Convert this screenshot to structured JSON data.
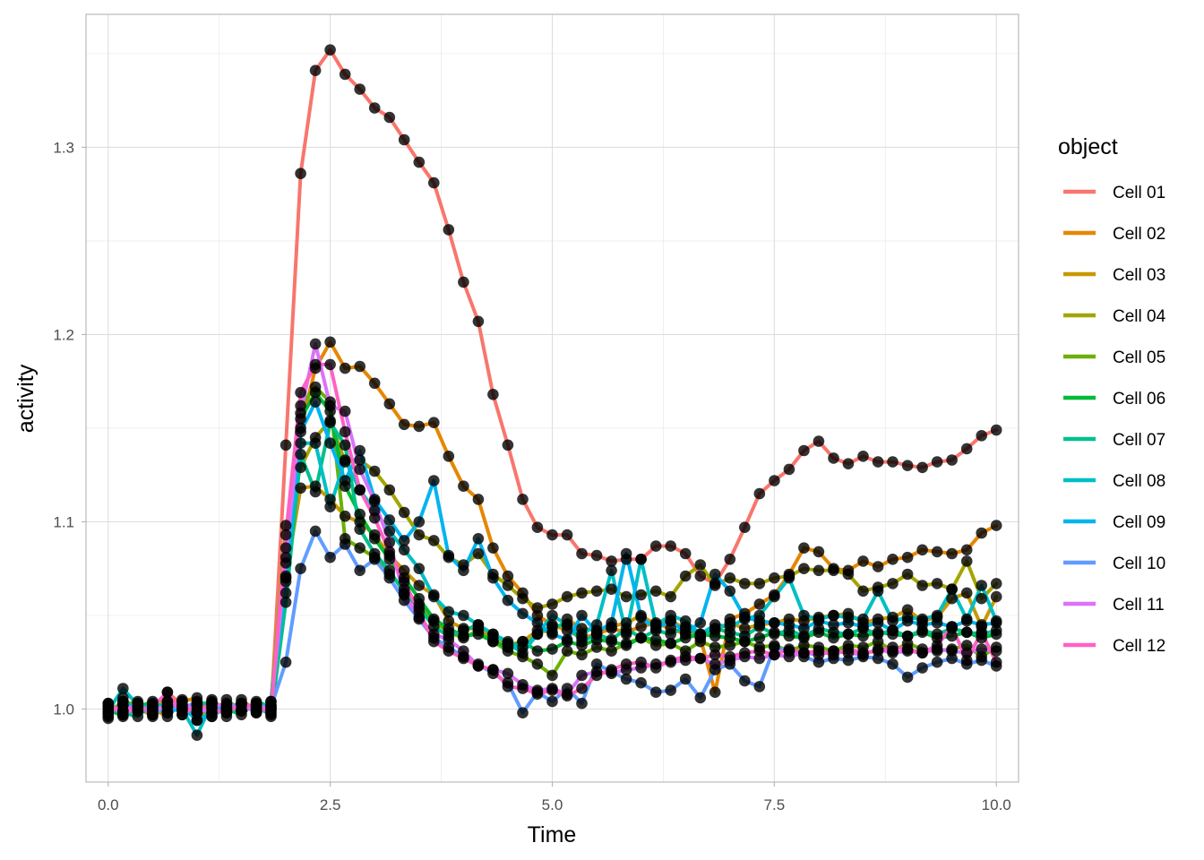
{
  "chart_data": {
    "type": "line",
    "xlabel": "Time",
    "ylabel": "activity",
    "xlim": [
      -0.25,
      10.25
    ],
    "ylim": [
      0.961,
      1.371
    ],
    "xticks": [
      0.0,
      2.5,
      5.0,
      7.5,
      10.0
    ],
    "xtick_labels": [
      "0.0",
      "2.5",
      "5.0",
      "7.5",
      "10.0"
    ],
    "yticks": [
      1.0,
      1.1,
      1.2,
      1.3
    ],
    "ytick_labels": [
      "1.0",
      "1.1",
      "1.2",
      "1.3"
    ],
    "grid": true,
    "legend": {
      "title": "object",
      "position": "right"
    },
    "x": [
      0.0,
      0.167,
      0.333,
      0.5,
      0.667,
      0.833,
      1.0,
      1.167,
      1.333,
      1.5,
      1.667,
      1.833,
      2.0,
      2.167,
      2.333,
      2.5,
      2.667,
      2.833,
      3.0,
      3.167,
      3.333,
      3.5,
      3.667,
      3.833,
      4.0,
      4.167,
      4.333,
      4.5,
      4.667,
      4.833,
      5.0,
      5.167,
      5.333,
      5.5,
      5.667,
      5.833,
      6.0,
      6.167,
      6.333,
      6.5,
      6.667,
      6.833,
      7.0,
      7.167,
      7.333,
      7.5,
      7.667,
      7.833,
      8.0,
      8.167,
      8.333,
      8.5,
      8.667,
      8.833,
      9.0,
      9.167,
      9.333,
      9.5,
      9.667,
      9.833,
      10.0
    ],
    "series": [
      {
        "name": "Cell 01",
        "color": "#F8766D",
        "values": [
          0.998,
          1.004,
          1.001,
          0.996,
          1.009,
          1.002,
          0.998,
          1.005,
          0.999,
          1.003,
          1.001,
          0.997,
          1.141,
          1.286,
          1.341,
          1.352,
          1.339,
          1.331,
          1.321,
          1.316,
          1.304,
          1.292,
          1.281,
          1.256,
          1.228,
          1.207,
          1.168,
          1.141,
          1.112,
          1.097,
          1.093,
          1.093,
          1.083,
          1.082,
          1.079,
          1.08,
          1.08,
          1.087,
          1.087,
          1.083,
          1.071,
          1.067,
          1.08,
          1.097,
          1.115,
          1.122,
          1.128,
          1.138,
          1.143,
          1.134,
          1.131,
          1.135,
          1.132,
          1.132,
          1.13,
          1.129,
          1.132,
          1.133,
          1.139,
          1.146,
          1.149
        ]
      },
      {
        "name": "Cell 02",
        "color": "#E58700",
        "values": [
          1.001,
          0.997,
          1.003,
          1.0,
          0.996,
          1.004,
          1.006,
          0.998,
          1.002,
          0.999,
          1.003,
          1.0,
          1.086,
          1.15,
          1.182,
          1.196,
          1.182,
          1.183,
          1.174,
          1.163,
          1.152,
          1.151,
          1.153,
          1.135,
          1.119,
          1.112,
          1.086,
          1.071,
          1.062,
          1.05,
          1.045,
          1.042,
          1.038,
          1.04,
          1.043,
          1.041,
          1.044,
          1.046,
          1.043,
          1.04,
          1.038,
          1.009,
          1.048,
          1.051,
          1.056,
          1.061,
          1.072,
          1.086,
          1.084,
          1.075,
          1.074,
          1.079,
          1.076,
          1.08,
          1.081,
          1.085,
          1.084,
          1.083,
          1.085,
          1.094,
          1.098
        ]
      },
      {
        "name": "Cell 03",
        "color": "#C99800",
        "values": [
          0.995,
          1.006,
          0.999,
          1.002,
          1.004,
          0.997,
          1.0,
          1.003,
          0.996,
          1.005,
          0.999,
          1.002,
          1.071,
          1.118,
          1.119,
          1.112,
          1.103,
          1.1,
          1.093,
          1.082,
          1.074,
          1.066,
          1.061,
          1.047,
          1.043,
          1.043,
          1.038,
          1.034,
          1.036,
          1.042,
          1.041,
          1.048,
          1.043,
          1.042,
          1.044,
          1.046,
          1.05,
          1.045,
          1.047,
          1.043,
          1.039,
          1.042,
          1.046,
          1.043,
          1.045,
          1.046,
          1.048,
          1.047,
          1.049,
          1.05,
          1.051,
          1.046,
          1.048,
          1.049,
          1.053,
          1.047,
          1.049,
          1.059,
          1.062,
          1.044,
          1.06
        ]
      },
      {
        "name": "Cell 04",
        "color": "#A3A500",
        "values": [
          1.003,
          0.999,
          1.002,
          0.997,
          1.001,
          1.005,
          0.994,
          1.002,
          1.0,
          1.003,
          0.998,
          1.004,
          1.098,
          1.129,
          1.145,
          1.154,
          1.132,
          1.133,
          1.127,
          1.117,
          1.105,
          1.093,
          1.09,
          1.081,
          1.077,
          1.083,
          1.072,
          1.066,
          1.059,
          1.054,
          1.056,
          1.06,
          1.062,
          1.063,
          1.064,
          1.06,
          1.061,
          1.063,
          1.06,
          1.071,
          1.077,
          1.066,
          1.07,
          1.067,
          1.067,
          1.07,
          1.071,
          1.075,
          1.074,
          1.074,
          1.072,
          1.063,
          1.065,
          1.067,
          1.072,
          1.066,
          1.067,
          1.064,
          1.079,
          1.059,
          1.067
        ]
      },
      {
        "name": "Cell 05",
        "color": "#6BB100",
        "values": [
          0.997,
          1.002,
          1.004,
          1.0,
          0.998,
          1.001,
          1.003,
          0.996,
          1.005,
          0.999,
          1.002,
          0.998,
          1.068,
          1.162,
          1.172,
          1.164,
          1.091,
          1.086,
          1.081,
          1.072,
          1.064,
          1.056,
          1.047,
          1.041,
          1.038,
          1.042,
          1.036,
          1.031,
          1.028,
          1.024,
          1.018,
          1.031,
          1.029,
          1.033,
          1.031,
          1.035,
          1.038,
          1.034,
          1.035,
          1.031,
          1.036,
          1.033,
          1.034,
          1.036,
          1.033,
          1.034,
          1.031,
          1.034,
          1.033,
          1.031,
          1.034,
          1.033,
          1.036,
          1.031,
          1.035,
          1.032,
          1.031,
          1.032,
          1.034,
          1.028,
          1.033
        ]
      },
      {
        "name": "Cell 06",
        "color": "#00BA38",
        "values": [
          1.0,
          0.996,
          1.001,
          1.004,
          0.999,
          1.002,
          0.998,
          1.003,
          1.0,
          0.997,
          1.004,
          1.001,
          1.062,
          1.155,
          1.169,
          1.159,
          1.119,
          1.104,
          1.091,
          1.08,
          1.07,
          1.059,
          1.048,
          1.043,
          1.039,
          1.04,
          1.036,
          1.033,
          1.036,
          1.031,
          1.032,
          1.036,
          1.034,
          1.037,
          1.036,
          1.034,
          1.038,
          1.037,
          1.035,
          1.038,
          1.04,
          1.039,
          1.038,
          1.036,
          1.038,
          1.041,
          1.039,
          1.038,
          1.041,
          1.038,
          1.04,
          1.039,
          1.041,
          1.04,
          1.039,
          1.041,
          1.038,
          1.039,
          1.041,
          1.038,
          1.04
        ]
      },
      {
        "name": "Cell 07",
        "color": "#00C08B",
        "values": [
          1.002,
          0.998,
          0.996,
          1.003,
          1.001,
          0.999,
          1.002,
          1.004,
          0.998,
          1.0,
          1.003,
          0.996,
          1.057,
          1.136,
          1.116,
          1.153,
          1.141,
          1.096,
          1.083,
          1.074,
          1.062,
          1.054,
          1.044,
          1.039,
          1.042,
          1.045,
          1.04,
          1.036,
          1.033,
          1.04,
          1.044,
          1.045,
          1.036,
          1.04,
          1.037,
          1.043,
          1.038,
          1.042,
          1.04,
          1.044,
          1.039,
          1.043,
          1.041,
          1.039,
          1.044,
          1.04,
          1.042,
          1.039,
          1.043,
          1.041,
          1.04,
          1.043,
          1.04,
          1.042,
          1.039,
          1.042,
          1.04,
          1.043,
          1.041,
          1.04,
          1.042
        ]
      },
      {
        "name": "Cell 08",
        "color": "#00BFC4",
        "values": [
          0.999,
          1.011,
          1.002,
          0.998,
          1.004,
          1.0,
          0.986,
          1.003,
          0.999,
          1.002,
          1.0,
          1.004,
          1.078,
          1.142,
          1.142,
          1.108,
          1.133,
          1.117,
          1.106,
          1.095,
          1.085,
          1.075,
          1.06,
          1.052,
          1.05,
          1.045,
          1.04,
          1.035,
          1.03,
          1.04,
          1.05,
          1.045,
          1.04,
          1.045,
          1.074,
          1.04,
          1.08,
          1.045,
          1.05,
          1.047,
          1.04,
          1.045,
          1.044,
          1.048,
          1.05,
          1.06,
          1.07,
          1.05,
          1.048,
          1.05,
          1.049,
          1.048,
          1.063,
          1.047,
          1.049,
          1.048,
          1.05,
          1.064,
          1.048,
          1.066,
          1.047
        ]
      },
      {
        "name": "Cell 09",
        "color": "#00B4F0",
        "values": [
          0.996,
          1.004,
          1.0,
          1.002,
          0.998,
          1.001,
          0.994,
          0.998,
          1.001,
          1.003,
          0.999,
          1.002,
          1.07,
          1.148,
          1.164,
          1.142,
          1.122,
          1.138,
          1.112,
          1.101,
          1.09,
          1.1,
          1.122,
          1.082,
          1.074,
          1.091,
          1.07,
          1.058,
          1.051,
          1.046,
          1.04,
          1.037,
          1.05,
          1.041,
          1.046,
          1.083,
          1.049,
          1.043,
          1.047,
          1.041,
          1.046,
          1.072,
          1.063,
          1.049,
          1.047,
          1.046,
          1.045,
          1.043,
          1.047,
          1.045,
          1.046,
          1.044,
          1.046,
          1.042,
          1.047,
          1.045,
          1.046,
          1.044,
          1.047,
          1.045,
          1.046
        ]
      },
      {
        "name": "Cell 10",
        "color": "#619CFF",
        "values": [
          1.001,
          0.999,
          1.003,
          0.997,
          1.002,
          1.0,
          1.004,
          0.996,
          1.001,
          1.003,
          0.998,
          1.001,
          1.025,
          1.075,
          1.095,
          1.081,
          1.088,
          1.074,
          1.08,
          1.07,
          1.058,
          1.048,
          1.038,
          1.033,
          1.028,
          1.024,
          1.019,
          1.014,
          0.998,
          1.009,
          1.004,
          1.011,
          1.003,
          1.024,
          1.02,
          1.016,
          1.014,
          1.009,
          1.01,
          1.016,
          1.006,
          1.021,
          1.024,
          1.015,
          1.012,
          1.033,
          1.031,
          1.028,
          1.025,
          1.027,
          1.026,
          1.028,
          1.027,
          1.024,
          1.017,
          1.022,
          1.025,
          1.027,
          1.024,
          1.026,
          1.023
        ]
      },
      {
        "name": "Cell 11",
        "color": "#DB72FB",
        "values": [
          1.003,
          0.997,
          1.001,
          0.999,
          1.002,
          1.004,
          0.998,
          1.001,
          1.003,
          0.999,
          1.002,
          1.0,
          1.081,
          1.158,
          1.195,
          1.162,
          1.159,
          1.128,
          1.111,
          1.089,
          1.061,
          1.049,
          1.04,
          1.037,
          1.031,
          1.023,
          1.021,
          1.019,
          1.013,
          1.01,
          1.011,
          1.008,
          1.018,
          1.02,
          1.019,
          1.021,
          1.022,
          1.024,
          1.025,
          1.026,
          1.027,
          1.024,
          1.026,
          1.028,
          1.027,
          1.029,
          1.028,
          1.03,
          1.029,
          1.031,
          1.03,
          1.029,
          1.032,
          1.03,
          1.031,
          1.03,
          1.032,
          1.031,
          1.03,
          1.032,
          1.031
        ]
      },
      {
        "name": "Cell 12",
        "color": "#FF61C3",
        "values": [
          0.998,
          1.002,
          0.999,
          1.001,
          1.009,
          0.997,
          1.002,
          1.0,
          0.998,
          1.003,
          1.001,
          0.999,
          1.093,
          1.169,
          1.184,
          1.184,
          1.148,
          1.117,
          1.102,
          1.084,
          1.068,
          1.052,
          1.036,
          1.031,
          1.027,
          1.023,
          1.021,
          1.012,
          1.011,
          1.008,
          1.01,
          1.007,
          1.011,
          1.018,
          1.021,
          1.024,
          1.025,
          1.022,
          1.026,
          1.028,
          1.027,
          1.029,
          1.028,
          1.03,
          1.031,
          1.029,
          1.032,
          1.03,
          1.031,
          1.029,
          1.032,
          1.03,
          1.031,
          1.033,
          1.032,
          1.03,
          1.034,
          1.044,
          1.026,
          1.041,
          1.025
        ]
      }
    ]
  }
}
